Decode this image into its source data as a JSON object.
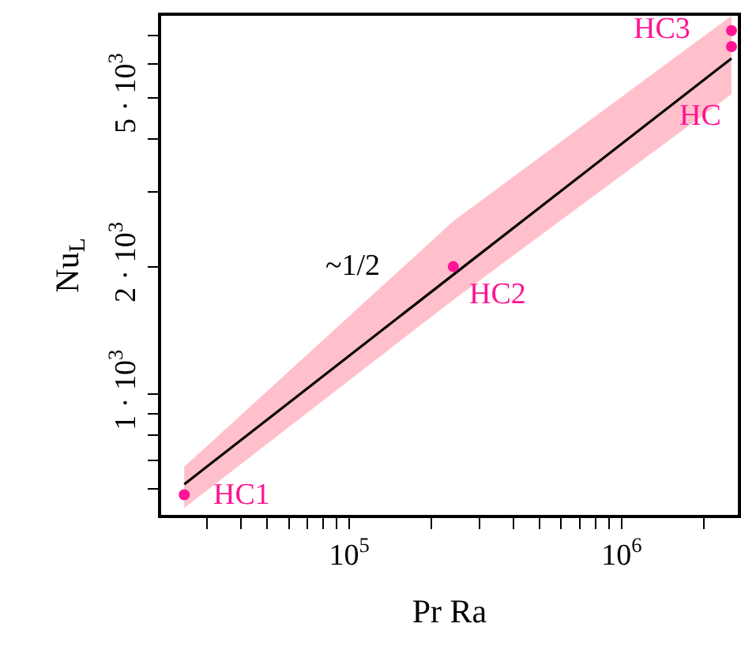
{
  "chart_data": {
    "type": "scatter",
    "xlabel": "Pr Ra",
    "ylabel": "Nu$_{L}$",
    "log": "xy",
    "grid": false,
    "line_style": "solid",
    "xlim": [
      20400,
      2670000
    ],
    "ylim": [
      520,
      7800
    ],
    "xticks": [
      {
        "value": 30000,
        "label": null
      },
      {
        "value": 40000,
        "label": null
      },
      {
        "value": 50000,
        "label": null
      },
      {
        "value": 60000,
        "label": null
      },
      {
        "value": 70000,
        "label": null
      },
      {
        "value": 80000,
        "label": null
      },
      {
        "value": 90000,
        "label": null
      },
      {
        "value": 100000,
        "label": "10$^{5}$"
      },
      {
        "value": 200000,
        "label": null
      },
      {
        "value": 300000,
        "label": null
      },
      {
        "value": 400000,
        "label": null
      },
      {
        "value": 500000,
        "label": null
      },
      {
        "value": 600000,
        "label": null
      },
      {
        "value": 700000,
        "label": null
      },
      {
        "value": 800000,
        "label": null
      },
      {
        "value": 900000,
        "label": null
      },
      {
        "value": 1000000,
        "label": "10$^{6}$"
      },
      {
        "value": 2000000,
        "label": null
      }
    ],
    "yticks": [
      {
        "value": 600,
        "label": null
      },
      {
        "value": 700,
        "label": null
      },
      {
        "value": 800,
        "label": null
      },
      {
        "value": 900,
        "label": null
      },
      {
        "value": 1000,
        "label": "1 · 10$^{3}$"
      },
      {
        "value": 2000,
        "label": "2 · 10$^{3}$"
      },
      {
        "value": 3000,
        "label": null
      },
      {
        "value": 4000,
        "label": null
      },
      {
        "value": 5000,
        "label": "5 · 10$^{3}$"
      },
      {
        "value": 6000,
        "label": null
      },
      {
        "value": 7000,
        "label": null
      }
    ],
    "series": [
      {
        "type": "line",
        "color": "#000000",
        "x": [
          24800,
          241000,
          2530000
        ],
        "values": [
          614,
          1914,
          6190
        ],
        "lower": [
          540,
          1670,
          5100
        ],
        "upper": [
          675,
          2560,
          7800
        ],
        "marker": "none"
      },
      {
        "color": "#ff1493",
        "marker": "circle",
        "x": [
          24800,
          241000,
          2530000,
          2530000
        ],
        "values": [
          580,
          2000,
          7200,
          6600
        ]
      }
    ],
    "annotations": [
      {
        "text": "HC1",
        "x": 24800,
        "y": 580
      },
      {
        "text": "HC2",
        "x": 241000,
        "y": 2000
      },
      {
        "text": "HC3",
        "x": 2530000,
        "y": 7200
      },
      {
        "text": "HC",
        "x": 2530000,
        "y": 6600
      },
      "~1/2"
    ]
  }
}
